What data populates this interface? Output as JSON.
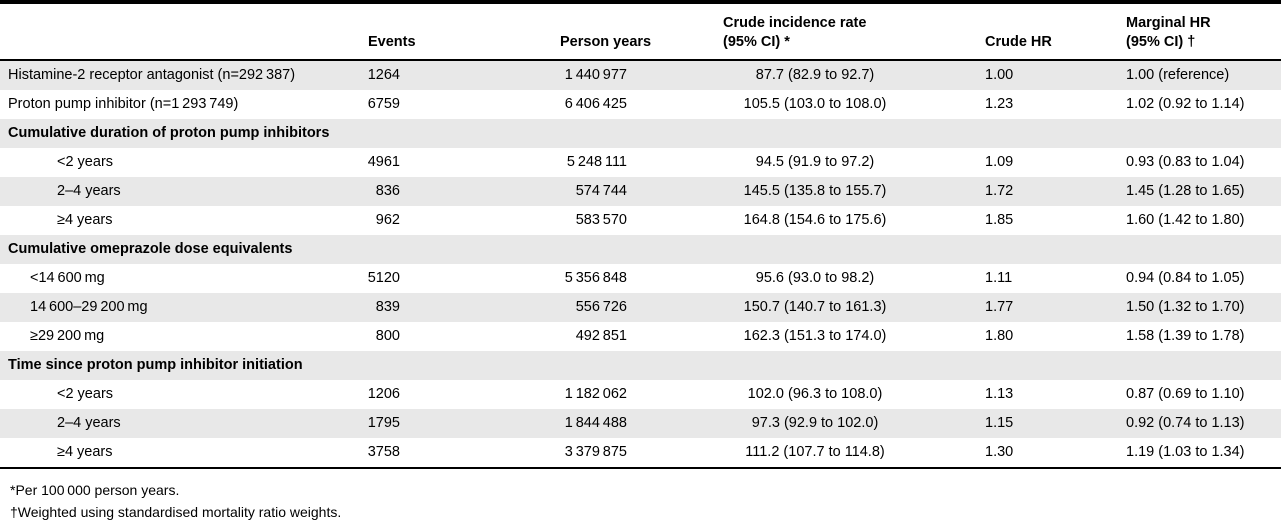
{
  "table": {
    "columns": [
      {
        "line1": ""
      },
      {
        "line1": "Events"
      },
      {
        "line1": "Person years"
      },
      {
        "line1": "Crude incidence rate",
        "line2": "(95% CI) *"
      },
      {
        "line1": "Crude HR"
      },
      {
        "line1": "Marginal HR",
        "line2": "(95% CI) †"
      }
    ],
    "rows": [
      {
        "type": "data",
        "shade": "gray",
        "indent": 0,
        "label": "Histamine-2 receptor antagonist (n=292 387)",
        "events": "1264",
        "person_years": "1 440 977",
        "crude_rate": "87.7 (82.9 to 92.7)",
        "crude_hr": "1.00",
        "marginal_hr": "1.00 (reference)"
      },
      {
        "type": "data",
        "shade": "white",
        "indent": 0,
        "label": "Proton pump inhibitor (n=1 293 749)",
        "events": "6759",
        "person_years": "6 406 425",
        "crude_rate": "105.5 (103.0 to 108.0)",
        "crude_hr": "1.23",
        "marginal_hr": "1.02 (0.92 to 1.14)"
      },
      {
        "type": "section",
        "shade": "gray",
        "label": "Cumulative duration of proton pump inhibitors"
      },
      {
        "type": "data",
        "shade": "white",
        "indent": 2,
        "label": "<2 years",
        "events": "4961",
        "person_years": "5 248 111",
        "crude_rate": "94.5 (91.9 to 97.2)",
        "crude_hr": "1.09",
        "marginal_hr": "0.93 (0.83 to 1.04)"
      },
      {
        "type": "data",
        "shade": "gray",
        "indent": 2,
        "label": "2–4 years",
        "events": "836",
        "person_years": "574 744",
        "crude_rate": "145.5 (135.8 to 155.7)",
        "crude_hr": "1.72",
        "marginal_hr": "1.45 (1.28 to 1.65)"
      },
      {
        "type": "data",
        "shade": "white",
        "indent": 2,
        "label": "≥4 years",
        "events": "962",
        "person_years": "583 570",
        "crude_rate": "164.8 (154.6 to 175.6)",
        "crude_hr": "1.85",
        "marginal_hr": "1.60 (1.42 to 1.80)"
      },
      {
        "type": "section",
        "shade": "gray",
        "label": "Cumulative omeprazole dose equivalents"
      },
      {
        "type": "data",
        "shade": "white",
        "indent": 1,
        "label": "<14 600 mg",
        "events": "5120",
        "person_years": "5 356 848",
        "crude_rate": "95.6 (93.0 to 98.2)",
        "crude_hr": "1.11",
        "marginal_hr": "0.94 (0.84 to 1.05)"
      },
      {
        "type": "data",
        "shade": "gray",
        "indent": 1,
        "label": "14 600–29 200 mg",
        "events": "839",
        "person_years": "556 726",
        "crude_rate": "150.7 (140.7 to 161.3)",
        "crude_hr": "1.77",
        "marginal_hr": "1.50 (1.32 to 1.70)"
      },
      {
        "type": "data",
        "shade": "white",
        "indent": 1,
        "label": "≥29 200 mg",
        "events": "800",
        "person_years": "492 851",
        "crude_rate": "162.3 (151.3 to 174.0)",
        "crude_hr": "1.80",
        "marginal_hr": "1.58 (1.39 to 1.78)"
      },
      {
        "type": "section",
        "shade": "gray",
        "label": "Time since proton pump inhibitor initiation"
      },
      {
        "type": "data",
        "shade": "white",
        "indent": 2,
        "label": "<2 years",
        "events": "1206",
        "person_years": "1 182 062",
        "crude_rate": "102.0 (96.3 to 108.0)",
        "crude_hr": "1.13",
        "marginal_hr": "0.87 (0.69 to 1.10)"
      },
      {
        "type": "data",
        "shade": "gray",
        "indent": 2,
        "label": "2–4 years",
        "events": "1795",
        "person_years": "1 844 488",
        "crude_rate": "97.3 (92.9 to 102.0)",
        "crude_hr": "1.15",
        "marginal_hr": "0.92 (0.74 to 1.13)"
      },
      {
        "type": "data",
        "shade": "white",
        "indent": 2,
        "label": "≥4 years",
        "events": "3758",
        "person_years": "3 379 875",
        "crude_rate": "111.2 (107.7 to 114.8)",
        "crude_hr": "1.30",
        "marginal_hr": "1.19 (1.03 to 1.34)"
      }
    ]
  },
  "footnotes": [
    "*Per 100 000 person years.",
    "†Weighted using standardised mortality ratio weights."
  ]
}
